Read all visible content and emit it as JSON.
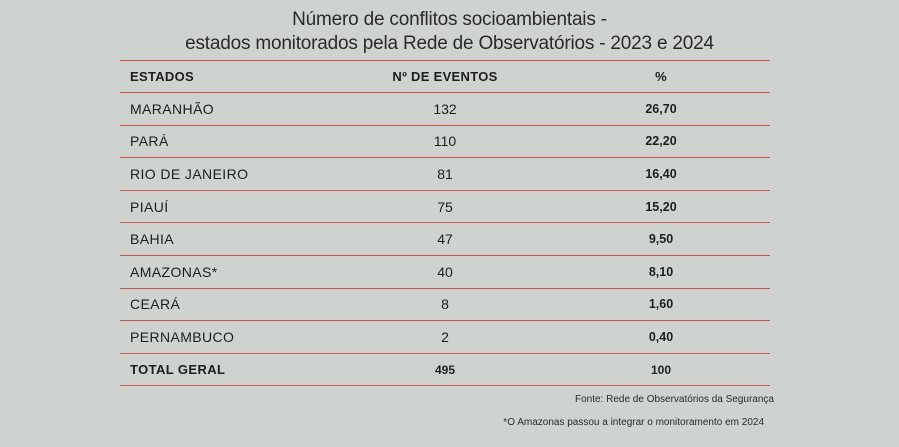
{
  "chart_data": {
    "type": "table",
    "title_lines": [
      "Número de conflitos socioambientais -",
      "estados monitorados pela Rede de Observatórios - 2023 e 2024"
    ],
    "columns": [
      "ESTADOS",
      "Nº DE EVENTOS",
      "%"
    ],
    "rows": [
      {
        "state": "MARANHÃO",
        "events": "132",
        "pct": "26,70"
      },
      {
        "state": "PARÁ",
        "events": "110",
        "pct": "22,20"
      },
      {
        "state": "RIO DE JANEIRO",
        "events": "81",
        "pct": "16,40"
      },
      {
        "state": "PIAUÍ",
        "events": "75",
        "pct": "15,20"
      },
      {
        "state": "BAHIA",
        "events": "47",
        "pct": "9,50"
      },
      {
        "state": "AMAZONAS*",
        "events": "40",
        "pct": "8,10"
      },
      {
        "state": "CEARÁ",
        "events": "8",
        "pct": "1,60"
      },
      {
        "state": "PERNAMBUCO",
        "events": "2",
        "pct": "0,40"
      }
    ],
    "total": {
      "state": "TOTAL GERAL",
      "events": "495",
      "pct": "100"
    },
    "source": "Fonte: Rede de Observatórios da Segurança",
    "footnote": "*O Amazonas passou a integrar o monitoramento em 2024"
  },
  "colors": {
    "background": "#cfd3cf",
    "rule": "#c9574b",
    "text": "#1d1d1d"
  }
}
